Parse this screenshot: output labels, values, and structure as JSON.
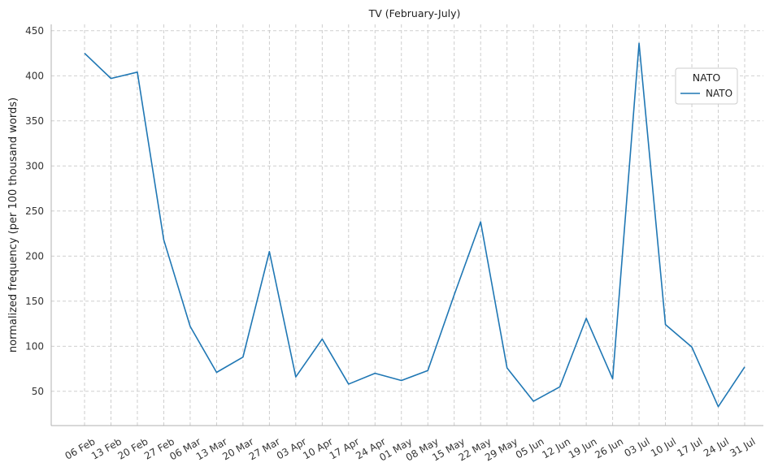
{
  "chart_data": {
    "type": "line",
    "title": "TV (February-July)",
    "xlabel": "",
    "ylabel": "normalized frequency (per 100 thousand words)",
    "categories": [
      "06 Feb",
      "13 Feb",
      "20 Feb",
      "27 Feb",
      "06 Mar",
      "13 Mar",
      "20 Mar",
      "27 Mar",
      "03 Apr",
      "10 Apr",
      "17 Apr",
      "24 Apr",
      "01 May",
      "08 May",
      "15 May",
      "22 May",
      "29 May",
      "05 Jun",
      "12 Jun",
      "19 Jun",
      "26 Jun",
      "03 Jul",
      "10 Jul",
      "17 Jul",
      "24 Jul",
      "31 Jul"
    ],
    "series": [
      {
        "name": "NATO",
        "color": "#1f77b4",
        "values": [
          425,
          397,
          404,
          218,
          122,
          71,
          88,
          205,
          66,
          108,
          58,
          70,
          62,
          73,
          157,
          238,
          76,
          39,
          55,
          131,
          64,
          436,
          124,
          99,
          33,
          77
        ]
      }
    ],
    "ylim": [
      12,
      457
    ],
    "yticks": [
      50,
      100,
      150,
      200,
      250,
      300,
      350,
      400,
      450
    ],
    "grid": true,
    "legend": {
      "title": "NATO",
      "placement": "top-right"
    }
  }
}
